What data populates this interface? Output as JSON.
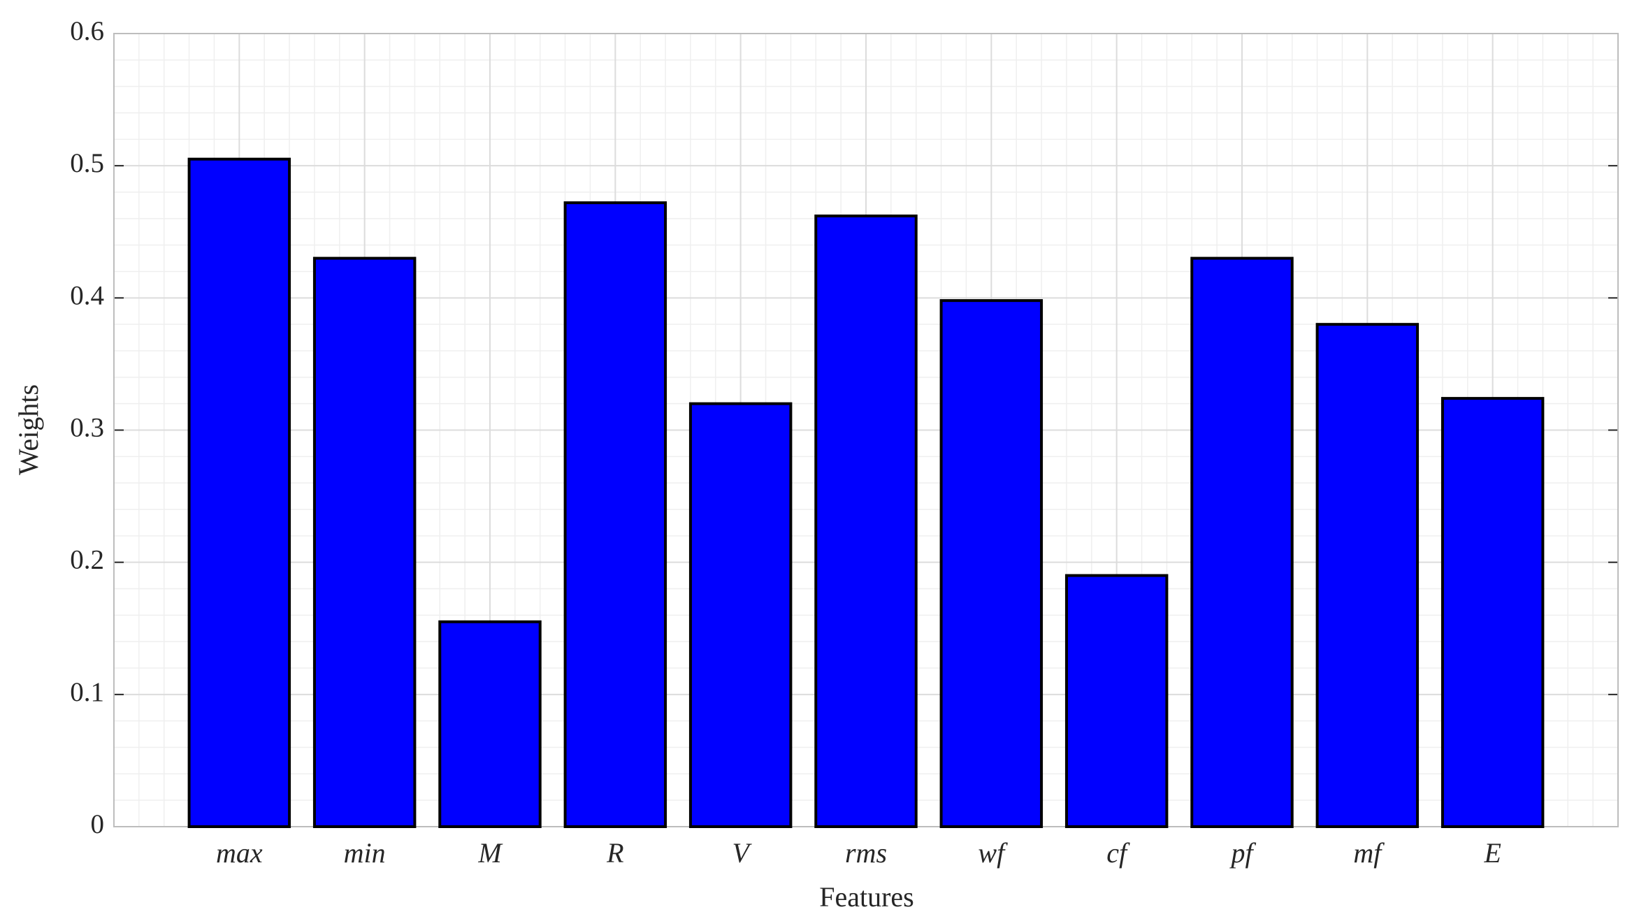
{
  "chart_data": {
    "type": "bar",
    "x_label": "Features",
    "y_label": "Weights",
    "categories": [
      "max",
      "min",
      "M",
      "R",
      "V",
      "rms",
      "wf",
      "cf",
      "pf",
      "mf",
      "E"
    ],
    "values": [
      0.505,
      0.43,
      0.155,
      0.472,
      0.32,
      0.462,
      0.398,
      0.19,
      0.43,
      0.38,
      0.324
    ],
    "color": "#0000ff",
    "ylim": [
      0,
      0.6
    ],
    "yticks": [
      0,
      0.1,
      0.2,
      0.3,
      0.4,
      0.5,
      0.6
    ],
    "grid": true,
    "minor_grid": true
  }
}
